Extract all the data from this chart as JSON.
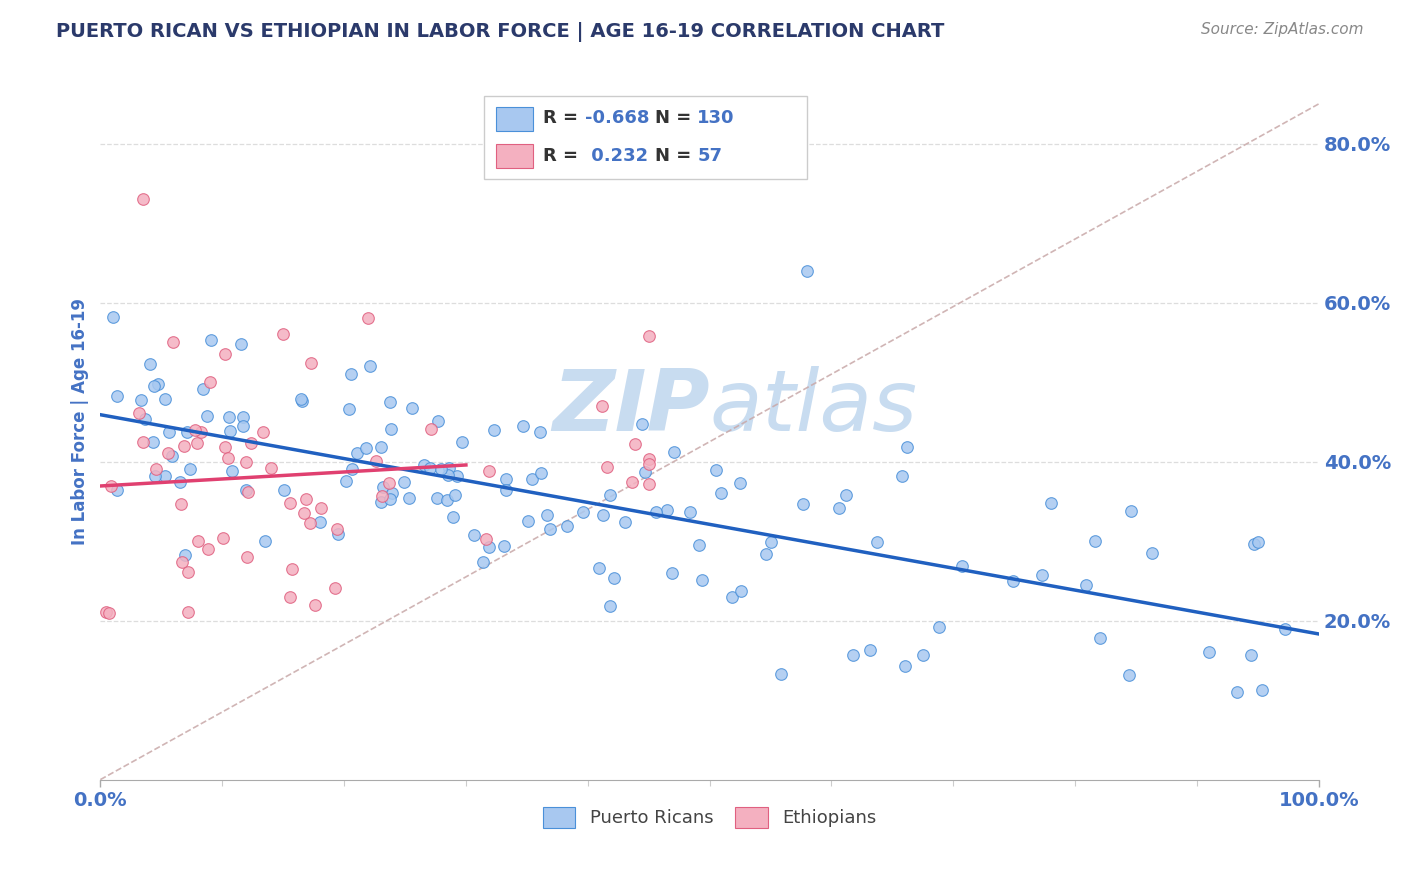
{
  "title": "PUERTO RICAN VS ETHIOPIAN IN LABOR FORCE | AGE 16-19 CORRELATION CHART",
  "source": "Source: ZipAtlas.com",
  "ylabel": "In Labor Force | Age 16-19",
  "xlim": [
    0.0,
    1.0
  ],
  "ylim": [
    0.0,
    0.9
  ],
  "ytick_labels": [
    "20.0%",
    "40.0%",
    "60.0%",
    "80.0%"
  ],
  "ytick_values": [
    0.2,
    0.4,
    0.6,
    0.8
  ],
  "blue_R": -0.668,
  "blue_N": 130,
  "pink_R": 0.232,
  "pink_N": 57,
  "blue_color": "#A8C8F0",
  "pink_color": "#F4B0C0",
  "blue_edge_color": "#4A90D9",
  "pink_edge_color": "#E06080",
  "blue_line_color": "#2060C0",
  "pink_line_color": "#E04070",
  "ref_line_color": "#C8A8A8",
  "watermark_color": "#C8DCF0",
  "background_color": "#FFFFFF",
  "title_color": "#2B3A6B",
  "axis_label_color": "#4472C4",
  "tick_color": "#4472C4",
  "legend_R_color_blue": "#4472C4",
  "legend_R_color_pink": "#E04070",
  "legend_N_color": "#333333",
  "grid_color": "#DDDDDD"
}
